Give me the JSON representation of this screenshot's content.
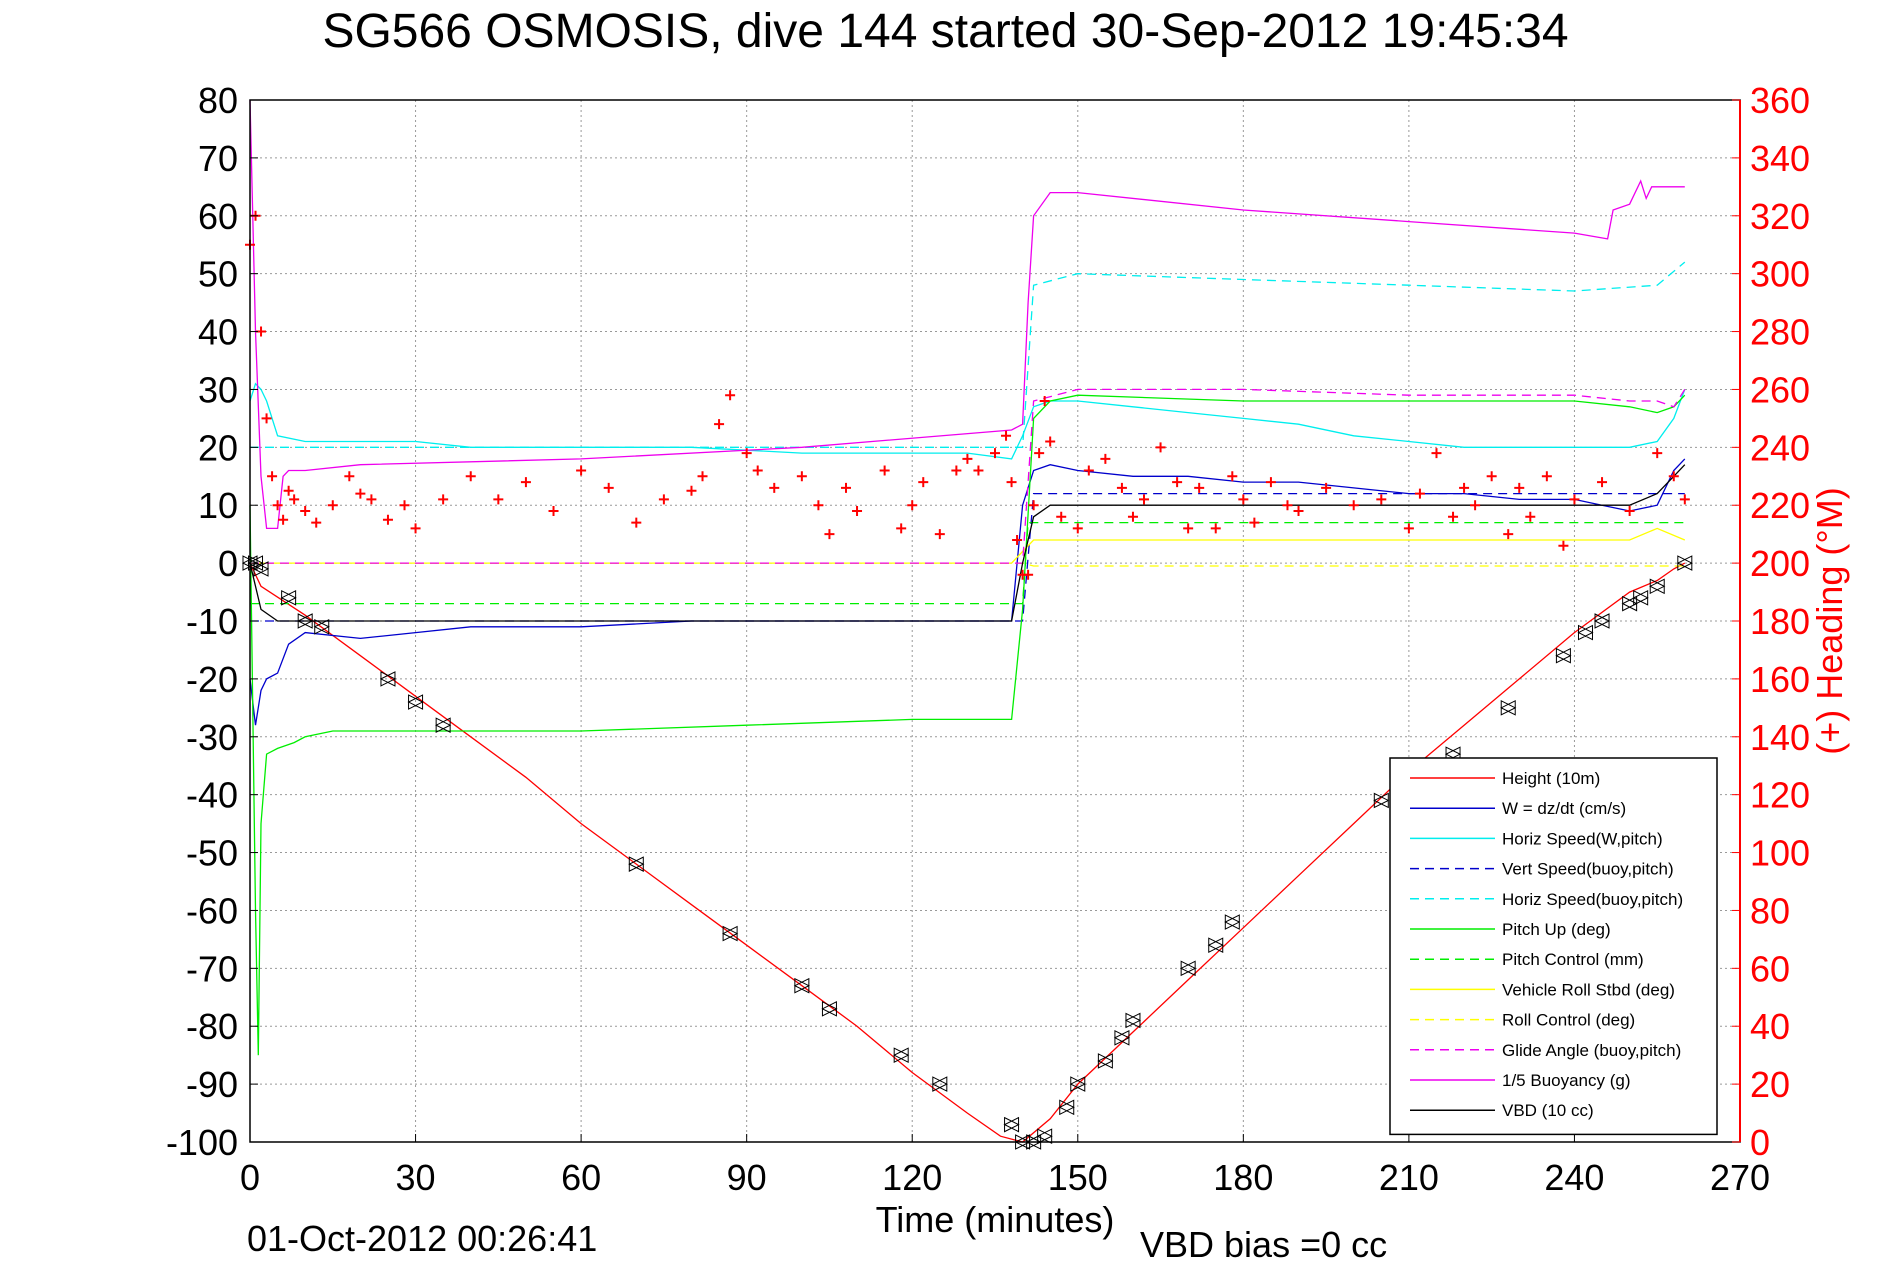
{
  "chart_data": {
    "type": "line",
    "title": "SG566 OSMOSIS, dive 144 started 30-Sep-2012 19:45:34",
    "xlabel": "Time (minutes)",
    "ylabel_left": "",
    "ylabel_right": "(+) Heading (°M)",
    "footer_date": "01-Oct-2012 00:26:41",
    "footer_note": "VBD bias =0 cc",
    "xlim": [
      0,
      270
    ],
    "ylim": [
      -100,
      80
    ],
    "y2lim": [
      0,
      360
    ],
    "xticks": [
      "0",
      "30",
      "60",
      "90",
      "120",
      "150",
      "180",
      "210",
      "240",
      "270"
    ],
    "yticks": [
      "80",
      "70",
      "60",
      "50",
      "40",
      "30",
      "20",
      "10",
      "0",
      "-10",
      "-20",
      "-30",
      "-40",
      "-50",
      "-60",
      "-70",
      "-80",
      "-90",
      "-100"
    ],
    "y2ticks": [
      "360",
      "340",
      "320",
      "300",
      "280",
      "260",
      "240",
      "220",
      "200",
      "180",
      "160",
      "140",
      "120",
      "100",
      "80",
      "60",
      "40",
      "20",
      "0"
    ],
    "grid": true,
    "legend_position": "bottom-right",
    "series": [
      {
        "name": "Height (10m)",
        "color": "#ff0000",
        "style": "solid",
        "x": [
          0,
          2,
          10,
          20,
          30,
          40,
          50,
          60,
          70,
          80,
          90,
          100,
          110,
          120,
          130,
          136,
          140,
          145,
          150,
          160,
          170,
          180,
          190,
          200,
          210,
          220,
          230,
          240,
          250,
          255,
          258,
          260
        ],
        "y": [
          0,
          -4,
          -9,
          -16,
          -23,
          -30,
          -37,
          -45,
          -52,
          -59,
          -66,
          -73,
          -80,
          -88,
          -95,
          -99,
          -100,
          -96,
          -90,
          -81,
          -72,
          -63,
          -54,
          -45,
          -36,
          -28,
          -20,
          -12,
          -5,
          -3,
          -1,
          0
        ]
      },
      {
        "name": "W = dz/dt (cm/s)",
        "color": "#0000cc",
        "style": "solid",
        "x": [
          0,
          1,
          2,
          3,
          5,
          7,
          10,
          20,
          30,
          40,
          60,
          80,
          100,
          120,
          130,
          138,
          140,
          142,
          145,
          150,
          160,
          170,
          180,
          190,
          200,
          210,
          220,
          230,
          240,
          245,
          250,
          255,
          258,
          260
        ],
        "y": [
          -20,
          -28,
          -22,
          -20,
          -19,
          -14,
          -12,
          -13,
          -12,
          -11,
          -11,
          -10,
          -10,
          -10,
          -10,
          -10,
          10,
          16,
          17,
          16,
          15,
          15,
          14,
          14,
          13,
          12,
          12,
          11,
          11,
          10,
          9,
          10,
          16,
          18
        ]
      },
      {
        "name": "Horiz Speed(W,pitch)",
        "color": "#00eeee",
        "style": "solid",
        "x": [
          0,
          1,
          2,
          3,
          5,
          10,
          20,
          30,
          40,
          60,
          80,
          100,
          120,
          130,
          138,
          140,
          142,
          145,
          150,
          160,
          170,
          180,
          190,
          200,
          210,
          220,
          230,
          240,
          245,
          250,
          255,
          258,
          260
        ],
        "y": [
          28,
          31,
          30,
          28,
          22,
          21,
          21,
          21,
          20,
          20,
          20,
          19,
          19,
          19,
          18,
          22,
          27,
          28,
          28,
          27,
          26,
          25,
          24,
          22,
          21,
          20,
          20,
          20,
          20,
          20,
          21,
          25,
          30
        ]
      },
      {
        "name": "Vert Speed(buoy,pitch)",
        "color": "#0000cc",
        "style": "dashed",
        "x": [
          0,
          140,
          142,
          260
        ],
        "y": [
          -10,
          -10,
          12,
          12
        ]
      },
      {
        "name": "Horiz Speed(buoy,pitch)",
        "color": "#00eeee",
        "style": "dashed",
        "x": [
          0,
          140,
          142,
          150,
          180,
          210,
          240,
          255,
          260
        ],
        "y": [
          20,
          20,
          48,
          50,
          49,
          48,
          47,
          48,
          52
        ]
      },
      {
        "name": "Pitch Up (deg)",
        "color": "#00ee00",
        "style": "solid",
        "x": [
          0,
          1,
          1.5,
          2,
          3,
          5,
          8,
          10,
          15,
          20,
          30,
          60,
          90,
          120,
          138,
          140,
          142,
          145,
          150,
          180,
          210,
          240,
          250,
          255,
          258,
          260
        ],
        "y": [
          10,
          -60,
          -85,
          -45,
          -33,
          -32,
          -31,
          -30,
          -29,
          -29,
          -29,
          -29,
          -28,
          -27,
          -27,
          -8,
          25,
          28,
          29,
          28,
          28,
          28,
          27,
          26,
          27,
          29
        ]
      },
      {
        "name": "Pitch Control (mm)",
        "color": "#00ee00",
        "style": "dashed",
        "x": [
          0,
          5,
          140,
          141,
          260
        ],
        "y": [
          -7,
          -7,
          -7,
          7,
          7
        ]
      },
      {
        "name": "Vehicle Roll Stbd (deg)",
        "color": "#ffff00",
        "style": "solid",
        "x": [
          0,
          5,
          10,
          30,
          60,
          90,
          100,
          120,
          138,
          140,
          142,
          145,
          150,
          160,
          180,
          200,
          220,
          240,
          250,
          255,
          260
        ],
        "y": [
          0,
          0,
          0,
          0,
          0,
          0,
          0,
          0,
          0,
          2,
          4,
          4,
          4,
          4,
          4,
          4,
          4,
          4,
          4,
          6,
          4
        ]
      },
      {
        "name": "Roll Control (deg)",
        "color": "#ffff00",
        "style": "dashed",
        "x": [
          0,
          140,
          142,
          260
        ],
        "y": [
          0,
          0,
          -0.5,
          -0.5
        ]
      },
      {
        "name": "Glide Angle (buoy,pitch)",
        "color": "#ee00ee",
        "style": "dashed",
        "x": [
          0,
          140,
          142,
          150,
          180,
          210,
          240,
          250,
          255,
          258,
          260
        ],
        "y": [
          0,
          0,
          28,
          30,
          30,
          29,
          29,
          28,
          28,
          27,
          30
        ]
      },
      {
        "name": "1/5 Buoyancy (g)",
        "color": "#ee00ee",
        "style": "solid",
        "x": [
          0,
          1,
          2,
          3,
          5,
          6,
          7,
          10,
          20,
          60,
          100,
          138,
          140,
          141,
          142,
          145,
          150,
          180,
          210,
          240,
          246,
          247,
          250,
          252,
          253,
          254,
          256,
          260
        ],
        "y": [
          80,
          40,
          15,
          6,
          6,
          15,
          16,
          16,
          17,
          18,
          20,
          23,
          24,
          45,
          60,
          64,
          64,
          61,
          59,
          57,
          56,
          61,
          62,
          66,
          63,
          65,
          65,
          65
        ]
      },
      {
        "name": "VBD (10 cc)",
        "color": "#000000",
        "style": "solid",
        "x": [
          0,
          2,
          5,
          138,
          140,
          142,
          145,
          150,
          200,
          240,
          250,
          255,
          258,
          260
        ],
        "y": [
          0,
          -8,
          -10,
          -10,
          0,
          8,
          10,
          10,
          10,
          10,
          10,
          12,
          15,
          17
        ]
      }
    ],
    "heading_marker": {
      "name": "(+) Heading",
      "color": "#ff0000",
      "marker": "+",
      "axis": "right",
      "x": [
        0,
        1,
        2,
        3,
        4,
        5,
        6,
        7,
        8,
        10,
        12,
        15,
        18,
        20,
        22,
        25,
        28,
        30,
        35,
        40,
        45,
        50,
        55,
        60,
        65,
        70,
        75,
        80,
        82,
        85,
        87,
        90,
        92,
        95,
        100,
        103,
        105,
        108,
        110,
        115,
        118,
        120,
        122,
        125,
        128,
        130,
        132,
        135,
        137,
        138,
        139,
        140,
        141,
        142,
        143,
        144,
        145,
        147,
        150,
        152,
        155,
        158,
        160,
        162,
        165,
        168,
        170,
        172,
        175,
        178,
        180,
        182,
        185,
        188,
        190,
        195,
        200,
        205,
        210,
        212,
        215,
        218,
        220,
        222,
        225,
        228,
        230,
        232,
        235,
        238,
        240,
        245,
        250,
        255,
        258,
        260
      ],
      "y": [
        310,
        320,
        280,
        250,
        230,
        220,
        215,
        225,
        222,
        218,
        214,
        220,
        230,
        224,
        222,
        215,
        220,
        212,
        222,
        230,
        222,
        228,
        218,
        232,
        226,
        214,
        222,
        225,
        230,
        248,
        258,
        238,
        232,
        226,
        230,
        220,
        210,
        226,
        218,
        232,
        212,
        220,
        228,
        210,
        232,
        236,
        232,
        238,
        244,
        228,
        208,
        196,
        196,
        220,
        238,
        256,
        242,
        216,
        212,
        232,
        236,
        226,
        216,
        222,
        240,
        228,
        212,
        226,
        212,
        230,
        222,
        214,
        228,
        220,
        218,
        226,
        220,
        222,
        212,
        224,
        238,
        216,
        226,
        220,
        230,
        210,
        226,
        216,
        230,
        206,
        222,
        228,
        218,
        238,
        230,
        222
      ]
    },
    "dive_markers": {
      "color": "#000000",
      "x": [
        0,
        1,
        2,
        7,
        10,
        13,
        25,
        30,
        35,
        70,
        87,
        100,
        105,
        118,
        125,
        138,
        140,
        142,
        144,
        148,
        150,
        155,
        158,
        160,
        170,
        175,
        178,
        205,
        218,
        228,
        238,
        242,
        245,
        250,
        252,
        255,
        260
      ],
      "y": [
        0,
        0,
        -1,
        -6,
        -10,
        -11,
        -20,
        -24,
        -28,
        -52,
        -64,
        -73,
        -77,
        -85,
        -90,
        -97,
        -100,
        -100,
        -99,
        -94,
        -90,
        -86,
        -82,
        -79,
        -70,
        -66,
        -62,
        -41,
        -33,
        -25,
        -16,
        -12,
        -10,
        -7,
        -6,
        -4,
        0
      ]
    }
  }
}
